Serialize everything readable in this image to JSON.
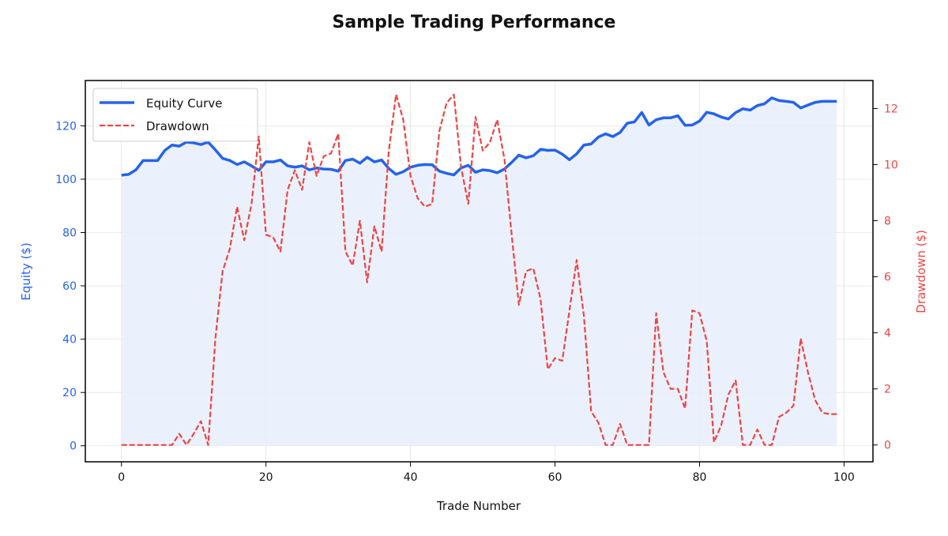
{
  "chart_data": {
    "type": "line",
    "title": "Sample Trading Performance",
    "xlabel": "Trade Number",
    "ylabel_left": "Equity ($)",
    "ylabel_right": "Drawdown ($)",
    "xlim": [
      -5,
      104
    ],
    "ylim_left": [
      -6,
      137
    ],
    "ylim_right": [
      -0.6,
      13
    ],
    "x_ticks": [
      0,
      20,
      40,
      60,
      80,
      100
    ],
    "y_ticks_left": [
      0,
      20,
      40,
      60,
      80,
      100,
      120
    ],
    "y_ticks_right": [
      0,
      2,
      4,
      6,
      8,
      10,
      12
    ],
    "grid": true,
    "legend_position": "top-left",
    "colors": {
      "equity": "#2563eb",
      "drawdown": "#ef4444",
      "fill": "#e8eefb",
      "axis_left": "#2563eb",
      "axis_right": "#ef4444"
    },
    "series": [
      {
        "name": "Equity Curve",
        "axis": "left",
        "style": "solid",
        "x": [
          0,
          1,
          2,
          3,
          4,
          5,
          6,
          7,
          8,
          9,
          10,
          11,
          12,
          13,
          14,
          15,
          16,
          17,
          18,
          19,
          20,
          21,
          22,
          23,
          24,
          25,
          26,
          27,
          28,
          29,
          30,
          31,
          32,
          33,
          34,
          35,
          36,
          37,
          38,
          39,
          40,
          41,
          42,
          43,
          44,
          45,
          46,
          47,
          48,
          49,
          50,
          51,
          52,
          53,
          54,
          55,
          56,
          57,
          58,
          59,
          60,
          61,
          62,
          63,
          64,
          65,
          66,
          67,
          68,
          69,
          70,
          71,
          72,
          73,
          74,
          75,
          76,
          77,
          78,
          79,
          80,
          81,
          82,
          83,
          84,
          85,
          86,
          87,
          88,
          89,
          90,
          91,
          92,
          93,
          94,
          95,
          96,
          97,
          98,
          99
        ],
        "values": [
          101.5,
          101.8,
          103.5,
          107,
          107,
          107,
          110.8,
          112.8,
          112.4,
          113.9,
          113.6,
          113,
          113.9,
          111,
          107.8,
          107,
          105.5,
          106.5,
          105,
          103.3,
          106.5,
          106.5,
          107.2,
          105,
          104.5,
          105,
          103.5,
          104.2,
          103.8,
          103.7,
          103,
          107,
          107.5,
          106,
          108.2,
          106.5,
          107.2,
          104,
          101.8,
          102.8,
          104.5,
          105.2,
          105.5,
          105.4,
          103,
          102.2,
          101.6,
          104.2,
          105.2,
          102.6,
          103.5,
          103.2,
          102.4,
          103.8,
          106.3,
          109,
          108,
          108.8,
          111.2,
          110.8,
          110.9,
          109.4,
          107.3,
          109.5,
          112.8,
          113.2,
          115.8,
          117,
          116,
          117.5,
          121,
          121.5,
          125,
          120.3,
          122.3,
          123,
          123,
          123.8,
          120.2,
          120.3,
          121.8,
          125.1,
          124.5,
          123.3,
          122.6,
          125,
          126.4,
          125.9,
          127.6,
          128.3,
          130.5,
          129.5,
          129.2,
          128.8,
          126.7,
          127.8,
          128.8,
          129.2,
          129.2,
          129.2
        ]
      },
      {
        "name": "Drawdown",
        "axis": "right",
        "style": "dashed",
        "x": [
          0,
          1,
          2,
          3,
          4,
          5,
          6,
          7,
          8,
          9,
          10,
          11,
          12,
          13,
          14,
          15,
          16,
          17,
          18,
          19,
          20,
          21,
          22,
          23,
          24,
          25,
          26,
          27,
          28,
          29,
          30,
          31,
          32,
          33,
          34,
          35,
          36,
          37,
          38,
          39,
          40,
          41,
          42,
          43,
          44,
          45,
          46,
          47,
          48,
          49,
          50,
          51,
          52,
          53,
          54,
          55,
          56,
          57,
          58,
          59,
          60,
          61,
          62,
          63,
          64,
          65,
          66,
          67,
          68,
          69,
          70,
          71,
          72,
          73,
          74,
          75,
          76,
          77,
          78,
          79,
          80,
          81,
          82,
          83,
          84,
          85,
          86,
          87,
          88,
          89,
          90,
          91,
          92,
          93,
          94,
          95,
          96,
          97,
          98,
          99
        ],
        "values": [
          0,
          0,
          0,
          0,
          0,
          0,
          0,
          0,
          0.4,
          0,
          0.4,
          0.85,
          0,
          3.8,
          6.2,
          7.0,
          8.5,
          7.3,
          8.6,
          11,
          7.5,
          7.4,
          6.9,
          9.1,
          9.8,
          9.1,
          10.8,
          9.6,
          10.3,
          10.4,
          11.1,
          6.9,
          6.4,
          8.0,
          5.8,
          7.8,
          6.9,
          10.5,
          12.5,
          11.6,
          9.6,
          8.8,
          8.5,
          8.6,
          11.2,
          12.2,
          12.5,
          9.9,
          8.6,
          11.7,
          10.5,
          10.8,
          11.6,
          10.2,
          7.5,
          5.0,
          6.2,
          6.3,
          5.2,
          2.7,
          3.1,
          3.0,
          4.8,
          6.6,
          4.6,
          1.2,
          0.8,
          0,
          0,
          0.75,
          0,
          0,
          0,
          0,
          4.7,
          2.6,
          2.0,
          2.0,
          1.3,
          4.8,
          4.7,
          3.7,
          0.1,
          0.7,
          1.8,
          2.3,
          0,
          0,
          0.55,
          0,
          0,
          1.0,
          1.15,
          1.4,
          3.8,
          2.6,
          1.6,
          1.15,
          1.1,
          1.1
        ]
      }
    ]
  }
}
